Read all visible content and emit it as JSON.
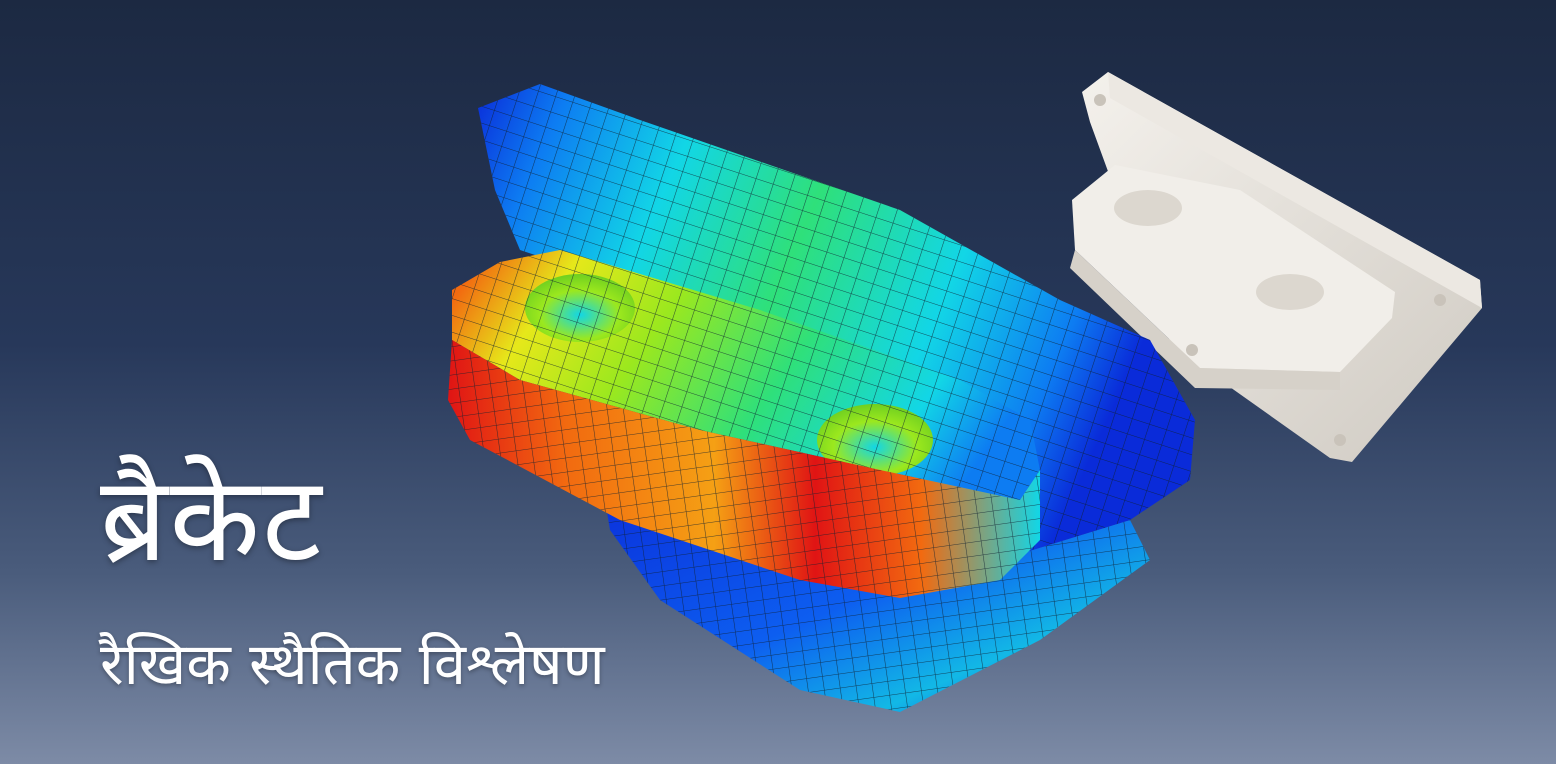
{
  "banner": {
    "title": "ब्रैकेट",
    "subtitle": "रैखिक स्थैतिक विश्लेषण",
    "background_colors": [
      "#1c2942",
      "#27385a",
      "#4a5c7c",
      "#7d8ba6"
    ]
  },
  "model": {
    "contour_colors": [
      "#0a2bd9",
      "#0d7cf2",
      "#12d6e6",
      "#2fe07a",
      "#9be81e",
      "#e6e81a",
      "#f5a014",
      "#f26a10",
      "#e01414"
    ],
    "bracket_color": "#e8e4dc"
  }
}
